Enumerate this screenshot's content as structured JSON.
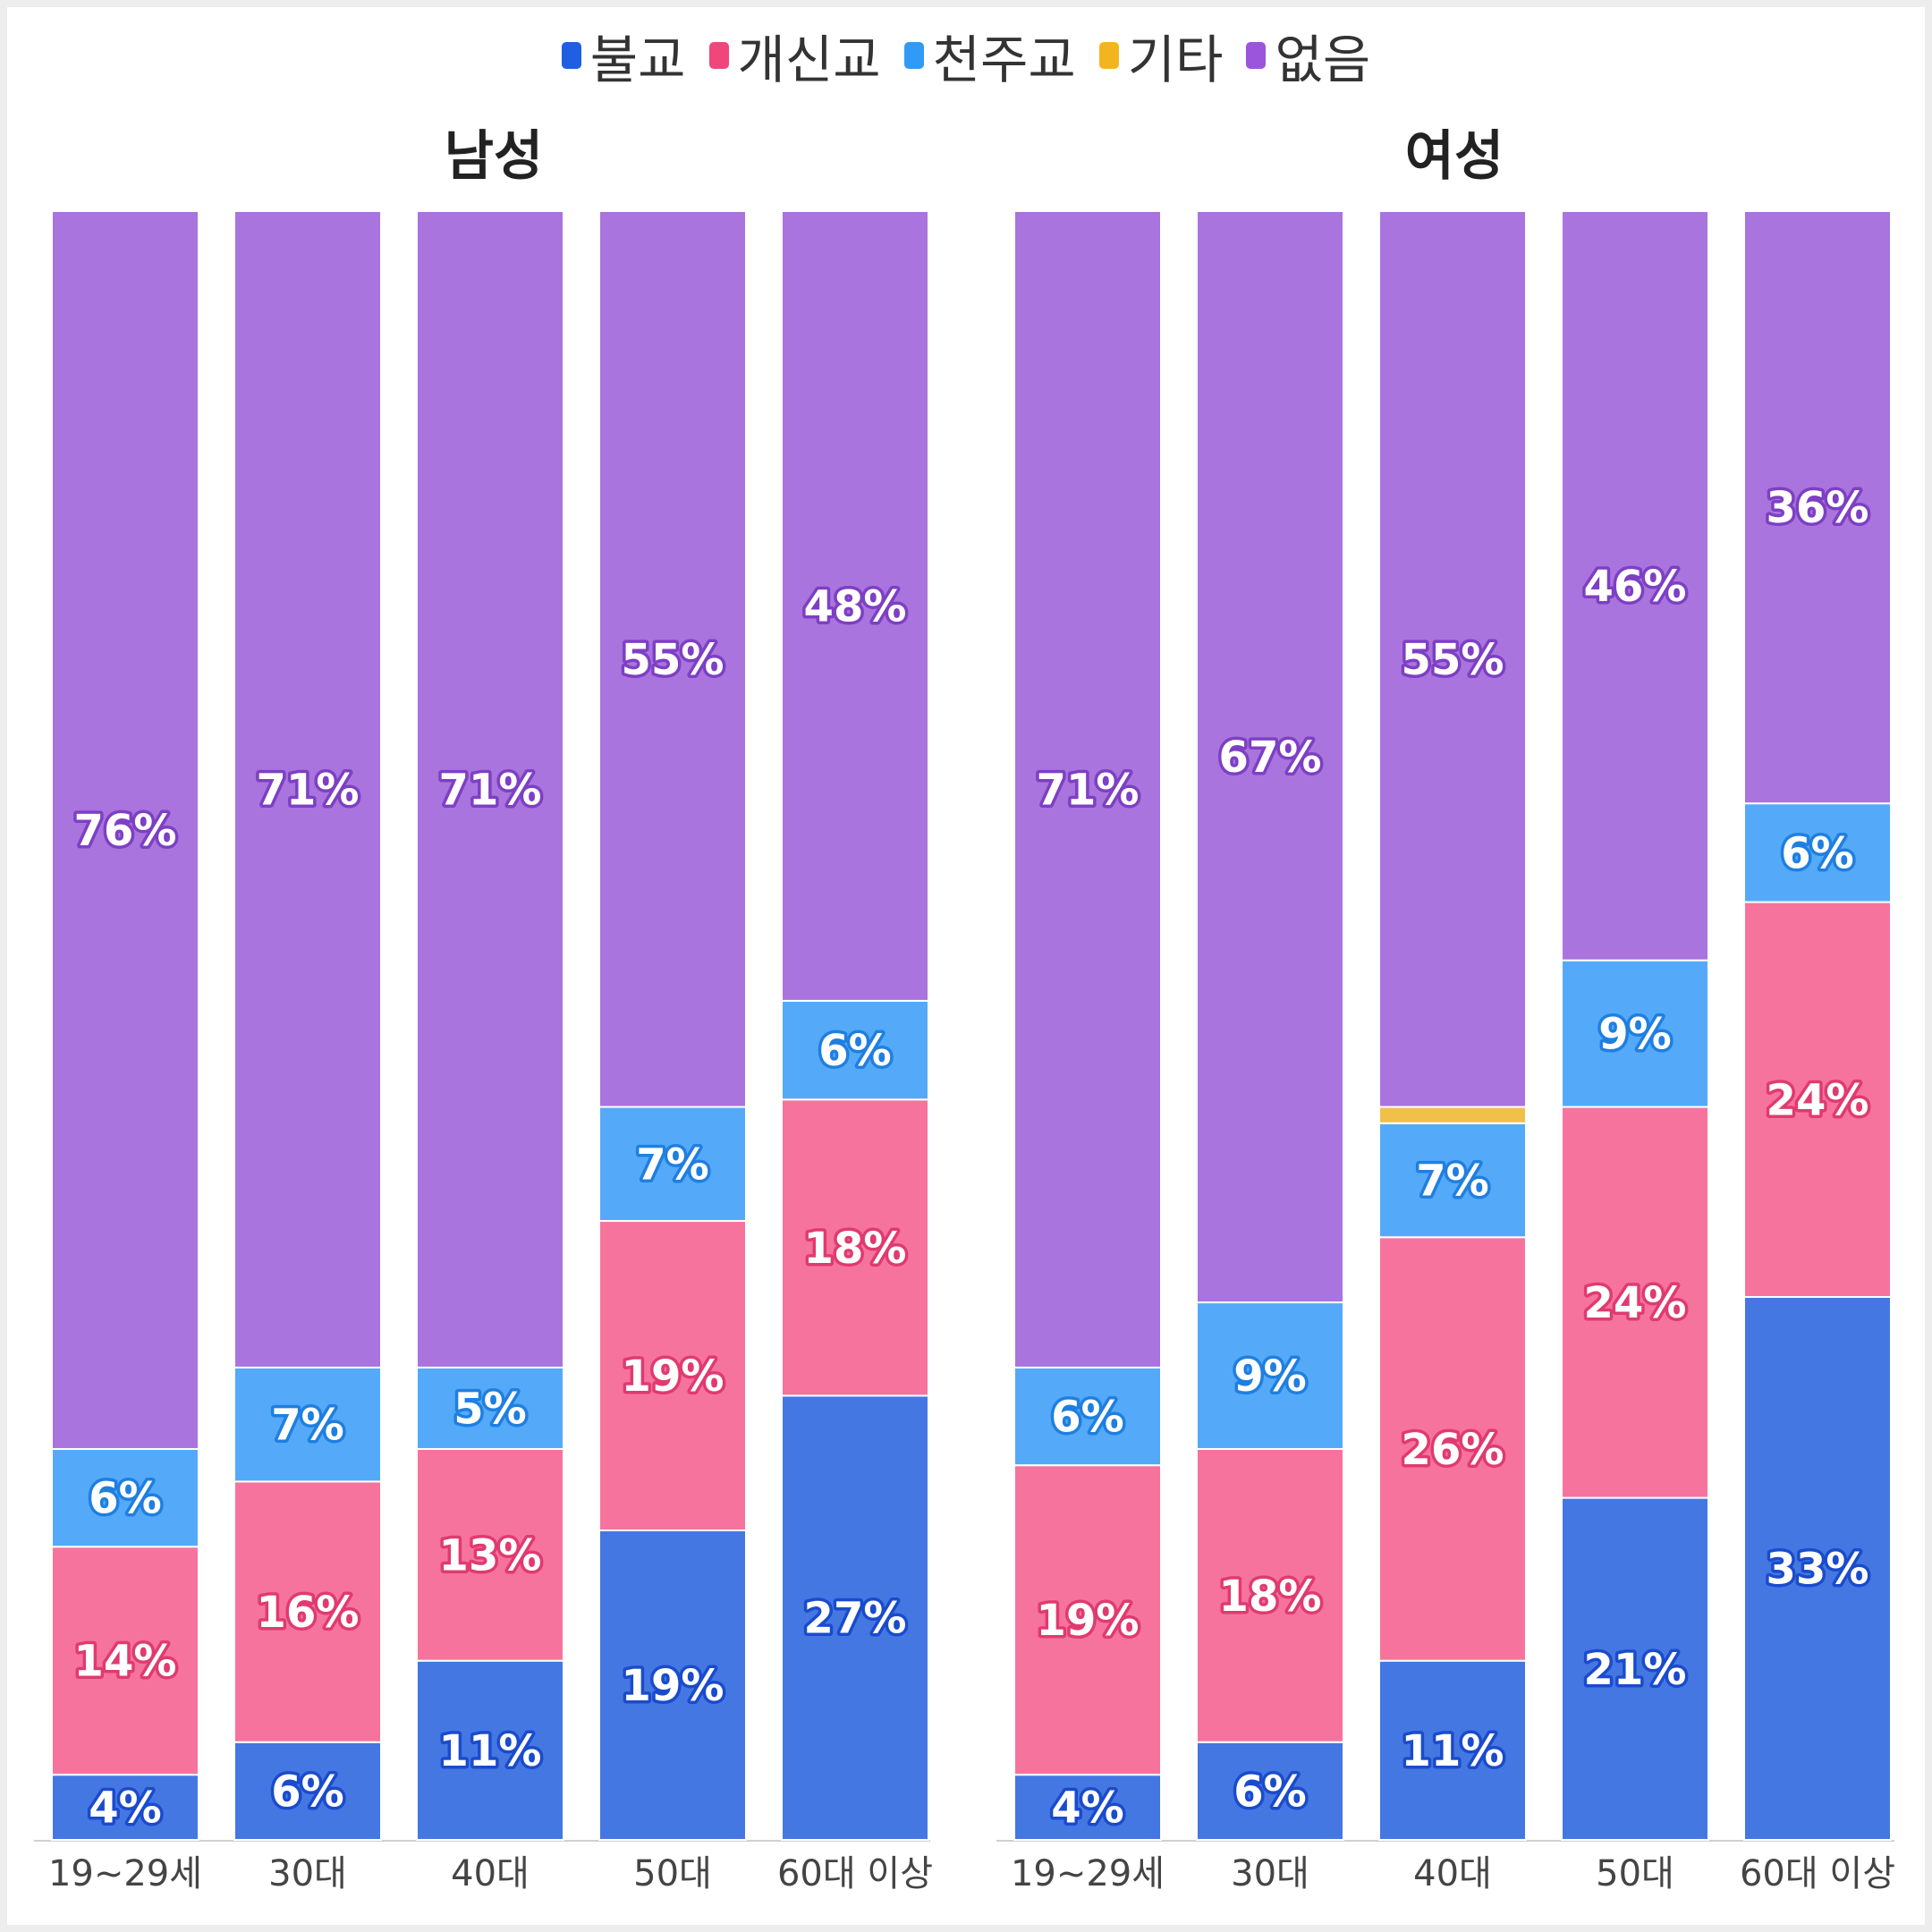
{
  "chart_data": {
    "type": "bar",
    "stacked": true,
    "percent": true,
    "legend_position": "top",
    "series": [
      {
        "name": "불교",
        "color": "#4477e2",
        "dot": "#1f5fe0",
        "outline": "#1a4bcc"
      },
      {
        "name": "개신교",
        "color": "#f6739e",
        "dot": "#f0467c",
        "outline": "#e03a70"
      },
      {
        "name": "천주교",
        "color": "#54aaf8",
        "dot": "#2f9bf7",
        "outline": "#1f7fe0"
      },
      {
        "name": "기타",
        "color": "#f1c04a",
        "dot": "#f2b51f",
        "outline": "#d19a10"
      },
      {
        "name": "없음",
        "color": "#a974dd",
        "dot": "#9b55dc",
        "outline": "#7d3fc4"
      }
    ],
    "panels": [
      {
        "title": "남성",
        "categories": [
          "19~29세",
          "30대",
          "40대",
          "50대",
          "60대 이상"
        ],
        "values": [
          [
            4,
            14,
            6,
            0,
            76
          ],
          [
            6,
            16,
            7,
            0,
            71
          ],
          [
            11,
            13,
            5,
            0,
            71
          ],
          [
            19,
            19,
            7,
            0,
            55
          ],
          [
            27,
            18,
            6,
            0,
            48
          ]
        ],
        "labels": [
          [
            "4%",
            "14%",
            "6%",
            "",
            "76%"
          ],
          [
            "6%",
            "16%",
            "7%",
            "",
            "71%"
          ],
          [
            "11%",
            "13%",
            "5%",
            "",
            "71%"
          ],
          [
            "19%",
            "19%",
            "7%",
            "",
            "55%"
          ],
          [
            "27%",
            "18%",
            "6%",
            "",
            "48%"
          ]
        ]
      },
      {
        "title": "여성",
        "categories": [
          "19~29세",
          "30대",
          "40대",
          "50대",
          "60대 이상"
        ],
        "values": [
          [
            4,
            19,
            6,
            0,
            71
          ],
          [
            6,
            18,
            9,
            0,
            67
          ],
          [
            11,
            26,
            7,
            1,
            55
          ],
          [
            21,
            24,
            9,
            0,
            46
          ],
          [
            33,
            24,
            6,
            0,
            36
          ]
        ],
        "labels": [
          [
            "4%",
            "19%",
            "6%",
            "",
            "71%"
          ],
          [
            "6%",
            "18%",
            "9%",
            "",
            "67%"
          ],
          [
            "11%",
            "26%",
            "7%",
            "",
            "55%"
          ],
          [
            "21%",
            "24%",
            "9%",
            "",
            "46%"
          ],
          [
            "33%",
            "24%",
            "6%",
            "",
            "36%"
          ]
        ]
      }
    ]
  }
}
